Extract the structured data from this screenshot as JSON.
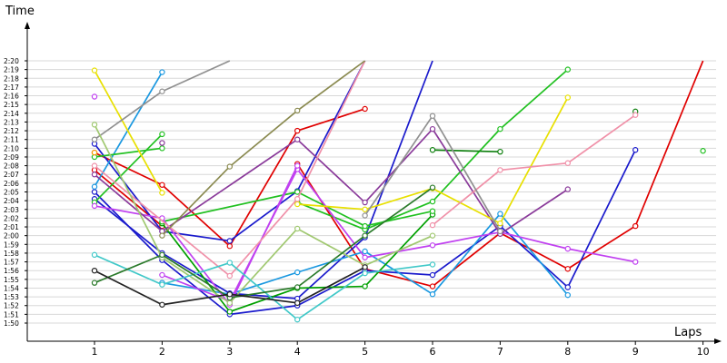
{
  "chart_data": {
    "type": "line",
    "title": "",
    "xlabel": "Laps",
    "ylabel": "Time",
    "x": [
      1,
      2,
      3,
      4,
      5,
      6,
      7,
      8,
      9,
      10
    ],
    "y_tick_labels": [
      "1:50",
      "1:51",
      "1:52",
      "1:53",
      "1:54",
      "1:55",
      "1:56",
      "1:57",
      "1:58",
      "1:59",
      "2:00",
      "2:01",
      "2:02",
      "2:03",
      "2:04",
      "2:05",
      "2:06",
      "2:07",
      "2:08",
      "2:09",
      "2:10",
      "2:11",
      "2:12",
      "2:13",
      "2:14",
      "2:15",
      "2:16",
      "2:17",
      "2:18",
      "2:19",
      "2:20"
    ],
    "x_tick_labels": [
      "1",
      "2",
      "3",
      "4",
      "5",
      "6",
      "7",
      "8",
      "9",
      "10"
    ],
    "ylim": [
      "1:50",
      "2:20"
    ],
    "y_unit": "seconds",
    "ylim_seconds": [
      110,
      140
    ],
    "grid": true,
    "legend": "none",
    "series": [
      {
        "color": "#e00000",
        "values": [
          129.5,
          125.8,
          118.8,
          132.0,
          134.5,
          null,
          null,
          null,
          null,
          null
        ]
      },
      {
        "color": "#e00000",
        "values": [
          null,
          null,
          null,
          128.2,
          116.2,
          114.2,
          120.3,
          116.2,
          121.1,
          140.0
        ]
      },
      {
        "color": "#e00000",
        "values": [
          127.5,
          121.1,
          null,
          null,
          null,
          null,
          null,
          null,
          null,
          null
        ]
      },
      {
        "color": "#1a1acc",
        "values": [
          125.0,
          117.2,
          111.0,
          112.0,
          116.0,
          115.5,
          121.1,
          114.1,
          129.8,
          null
        ]
      },
      {
        "color": "#1a1acc",
        "values": [
          130.5,
          120.5,
          119.4,
          125.1,
          140.0,
          null,
          null,
          null,
          null,
          null
        ]
      },
      {
        "color": "#1a1acc",
        "values": [
          124.2,
          118.0,
          113.4,
          112.8,
          119.8,
          140.0,
          null,
          null,
          null,
          null
        ]
      },
      {
        "color": "#1a98e0",
        "values": [
          125.6,
          138.7,
          null,
          null,
          null,
          null,
          null,
          null,
          null,
          null
        ]
      },
      {
        "color": "#1a98e0",
        "values": [
          null,
          114.6,
          113.3,
          115.8,
          118.2,
          113.3,
          122.5,
          113.2,
          null,
          null
        ]
      },
      {
        "color": "#00a000",
        "values": [
          null,
          121.4,
          111.3,
          114.0,
          114.2,
          122.4,
          null,
          null,
          null,
          null
        ]
      },
      {
        "color": "#20c020",
        "values": [
          123.8,
          131.6,
          null,
          null,
          null,
          null,
          null,
          null,
          null,
          null
        ]
      },
      {
        "color": "#20c020",
        "values": [
          129.0,
          130.0,
          null,
          null,
          null,
          null,
          null,
          null,
          null,
          null
        ]
      },
      {
        "color": "#20c020",
        "values": [
          null,
          null,
          null,
          123.8,
          120.7,
          123.9,
          132.2,
          139.0,
          null,
          null
        ]
      },
      {
        "color": "#20c020",
        "values": [
          null,
          121.6,
          null,
          125.0,
          121.1,
          122.8,
          null,
          null,
          null,
          null
        ]
      },
      {
        "color": "#108010",
        "values": [
          null,
          null,
          null,
          null,
          null,
          129.8,
          129.6,
          null,
          null,
          null
        ]
      },
      {
        "color": "#108010",
        "values": [
          null,
          null,
          null,
          null,
          null,
          null,
          null,
          null,
          134.2,
          null
        ]
      },
      {
        "color": "#20c020",
        "values": [
          null,
          null,
          null,
          null,
          null,
          null,
          null,
          null,
          null,
          129.7
        ]
      },
      {
        "color": "#c040f0",
        "values": [
          135.9,
          null,
          null,
          null,
          null,
          null,
          null,
          null,
          null,
          null
        ]
      },
      {
        "color": "#c040f0",
        "values": [
          null,
          115.5,
          112.5,
          127.6,
          117.5,
          118.9,
          120.4,
          118.5,
          117.0,
          null
        ]
      },
      {
        "color": "#c040f0",
        "values": [
          123.4,
          122.0,
          112.1,
          128.0,
          null,
          null,
          null,
          null,
          null,
          null
        ]
      },
      {
        "color": "#8a3a9a",
        "values": [
          127.0,
          120.5,
          null,
          131.0,
          123.8,
          132.2,
          120.2,
          125.3,
          null,
          null
        ]
      },
      {
        "color": "#8a3a9a",
        "values": [
          null,
          130.6,
          null,
          null,
          null,
          null,
          null,
          null,
          null,
          null
        ]
      },
      {
        "color": "#e8e000",
        "values": [
          138.9,
          124.9,
          null,
          null,
          null,
          null,
          null,
          null,
          null,
          null
        ]
      },
      {
        "color": "#e8e000",
        "values": [
          null,
          null,
          null,
          123.6,
          123.0,
          125.4,
          121.4,
          135.8,
          null,
          null
        ]
      },
      {
        "color": "#f8a000",
        "values": [
          129.5,
          null,
          null,
          null,
          null,
          null,
          null,
          null,
          null,
          null
        ]
      },
      {
        "color": "#f090a8",
        "values": [
          128.0,
          null,
          115.4,
          124.2,
          140.0,
          null,
          null,
          null,
          null,
          null
        ]
      },
      {
        "color": "#f090a8",
        "values": [
          null,
          null,
          null,
          null,
          null,
          121.2,
          127.5,
          128.3,
          133.8,
          null
        ]
      },
      {
        "color": "#909090",
        "values": [
          131.0,
          136.5,
          140.0,
          null,
          null,
          null,
          null,
          null,
          null,
          null
        ]
      },
      {
        "color": "#909090",
        "values": [
          null,
          null,
          null,
          null,
          122.3,
          133.7,
          120.5,
          null,
          null,
          null
        ]
      },
      {
        "color": "#8a8a50",
        "values": [
          null,
          120.0,
          127.9,
          134.3,
          140.0,
          null,
          null,
          null,
          null,
          null
        ]
      },
      {
        "color": "#a0c870",
        "values": [
          132.7,
          117.5,
          112.3,
          120.8,
          116.6,
          120.0,
          null,
          null,
          null,
          null
        ]
      },
      {
        "color": "#40c8c8",
        "values": [
          117.8,
          114.4,
          116.9,
          110.4,
          115.7,
          116.7,
          null,
          null,
          null,
          null
        ]
      },
      {
        "color": "#2a7a2a",
        "values": [
          114.6,
          117.8,
          112.9,
          114.1,
          120.0,
          125.5,
          null,
          null,
          null,
          null
        ]
      },
      {
        "color": "#222222",
        "values": [
          116.0,
          112.1,
          113.3,
          112.3,
          116.4,
          null,
          null,
          null,
          null,
          null
        ]
      }
    ]
  }
}
